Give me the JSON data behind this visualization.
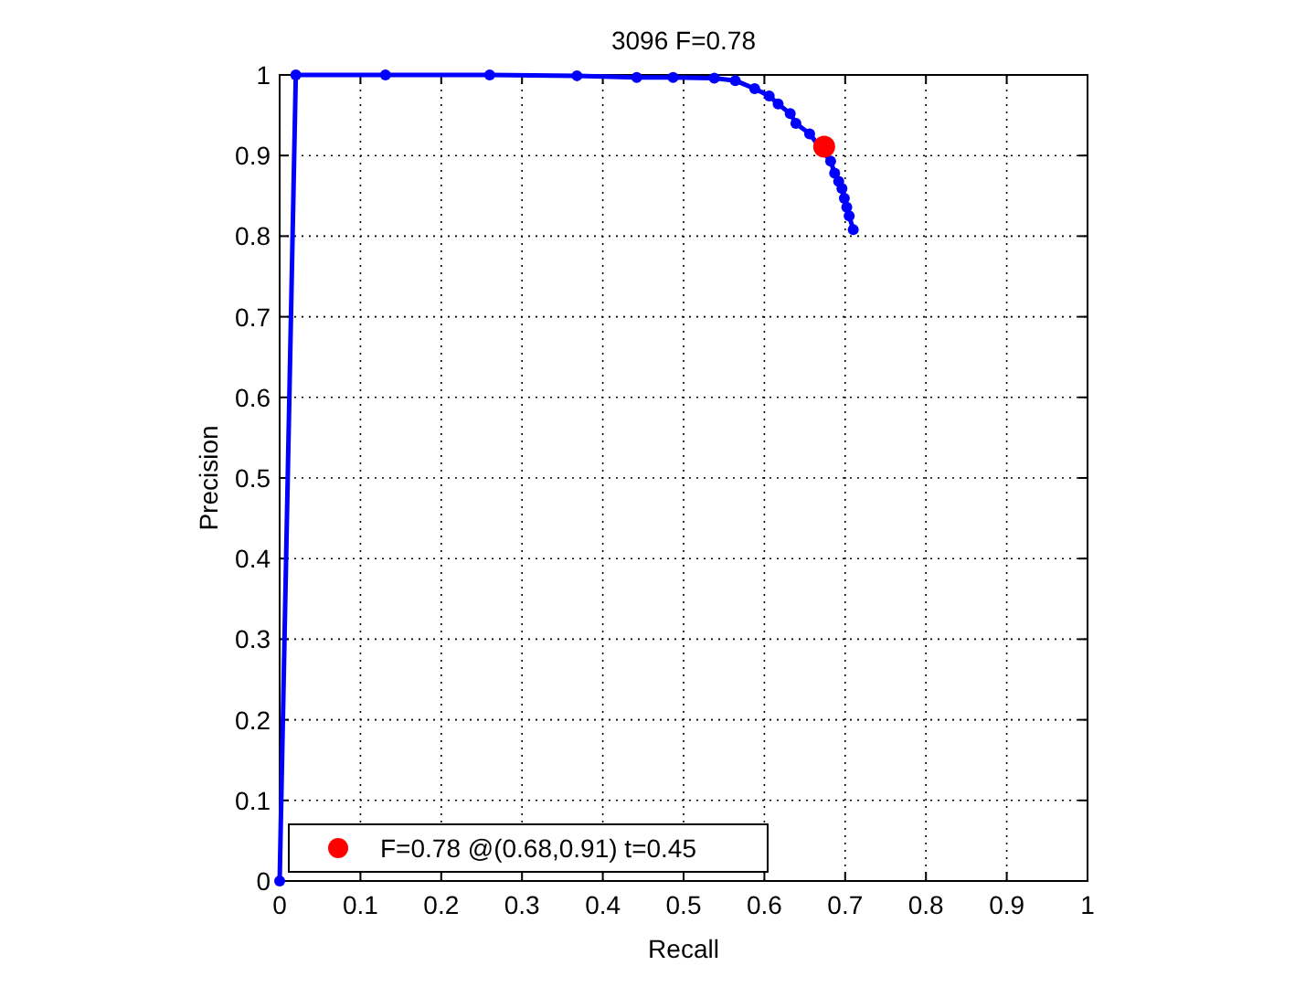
{
  "chart_data": {
    "type": "line",
    "title": "3096 F=0.78",
    "xlabel": "Recall",
    "ylabel": "Precision",
    "xlim": [
      0,
      1
    ],
    "ylim": [
      0,
      1
    ],
    "xticks": [
      0,
      0.1,
      0.2,
      0.3,
      0.4,
      0.5,
      0.6,
      0.7,
      0.8,
      0.9,
      1
    ],
    "yticks": [
      0,
      0.1,
      0.2,
      0.3,
      0.4,
      0.5,
      0.6,
      0.7,
      0.8,
      0.9,
      1
    ],
    "grid": true,
    "legend": "bottom left",
    "marker": "circle",
    "line_style": "solid",
    "series": [
      {
        "color": "#0000ff",
        "x": [
          0,
          0.02,
          0.131,
          0.26,
          0.368,
          0.442,
          0.487,
          0.538,
          0.564,
          0.588,
          0.606,
          0.617,
          0.632,
          0.639,
          0.656,
          0.682,
          0.687,
          0.692,
          0.696,
          0.699,
          0.702,
          0.705,
          0.71
        ],
        "values": [
          0,
          1,
          1,
          1,
          0.999,
          0.997,
          0.997,
          0.996,
          0.993,
          0.983,
          0.974,
          0.964,
          0.952,
          0.94,
          0.927,
          0.893,
          0.878,
          0.868,
          0.859,
          0.847,
          0.836,
          0.825,
          0.808
        ]
      },
      {
        "type": "scatter",
        "name": "F=0.78 @(0.68,0.91) t=0.45",
        "color": "#ff0000",
        "x": [
          0.674
        ],
        "values": [
          0.911
        ]
      }
    ]
  }
}
